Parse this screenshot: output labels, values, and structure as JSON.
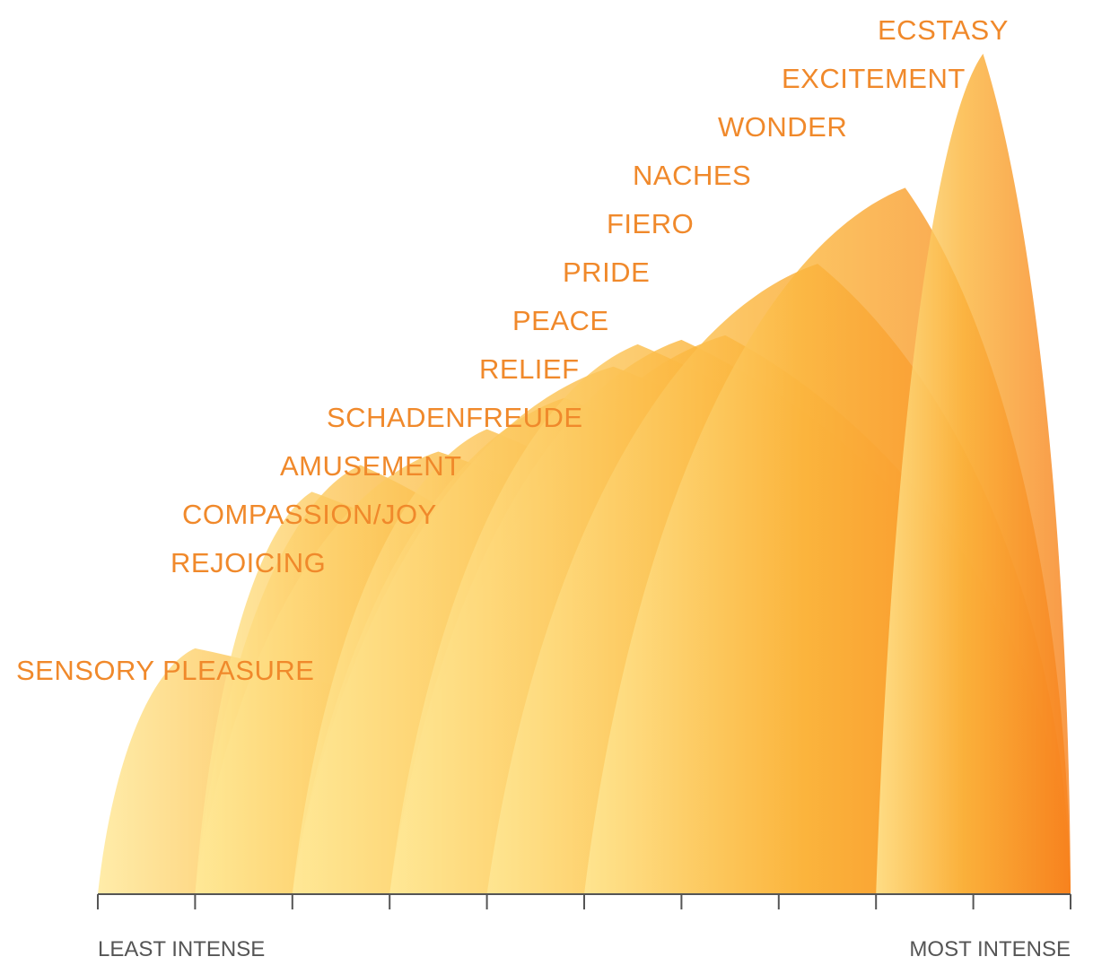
{
  "chart_data": {
    "type": "area",
    "title": "",
    "x_axis": {
      "start_label": "LEAST INTENSE",
      "end_label": "MOST INTENSE",
      "range": [
        0,
        10
      ],
      "tick_count": 11
    },
    "y_axis": {
      "range": [
        0,
        10
      ]
    },
    "series": [
      {
        "name": "SENSORY PLEASURE",
        "start": 0,
        "peak": 1,
        "end": 5,
        "intensity": 2.75
      },
      {
        "name": "REJOICING",
        "start": 1,
        "peak": 2.2,
        "end": 6,
        "intensity": 4.5
      },
      {
        "name": "COMPASSION/JOY",
        "start": 1,
        "peak": 2.7,
        "end": 6,
        "intensity": 4.8
      },
      {
        "name": "AMUSEMENT",
        "start": 1,
        "peak": 3.5,
        "end": 8,
        "intensity": 4.95
      },
      {
        "name": "SCHADENFREUDE",
        "start": 2,
        "peak": 4,
        "end": 8,
        "intensity": 5.2
      },
      {
        "name": "RELIEF",
        "start": 2,
        "peak": 4.8,
        "end": 9,
        "intensity": 5.55
      },
      {
        "name": "PEACE",
        "start": 2,
        "peak": 5.3,
        "end": 10,
        "intensity": 5.9
      },
      {
        "name": "PRIDE",
        "start": 3,
        "peak": 5.55,
        "end": 10,
        "intensity": 6.15
      },
      {
        "name": "FIERO",
        "start": 3,
        "peak": 6,
        "end": 10,
        "intensity": 6.2
      },
      {
        "name": "NACHES",
        "start": 3,
        "peak": 6.45,
        "end": 10,
        "intensity": 6.25
      },
      {
        "name": "WONDER",
        "start": 4,
        "peak": 7.4,
        "end": 10,
        "intensity": 7.05
      },
      {
        "name": "EXCITEMENT",
        "start": 5,
        "peak": 8.3,
        "end": 10,
        "intensity": 7.9
      },
      {
        "name": "ECSTASY",
        "start": 8,
        "peak": 9.1,
        "end": 10,
        "intensity": 9.4
      }
    ],
    "gradient": {
      "light": "#FFE896",
      "mid": "#FBB63E",
      "dark": "#F7821E"
    },
    "label_color": "#F0892B",
    "axis_color": "#555555",
    "grid": false,
    "legend": "inline-labels"
  }
}
